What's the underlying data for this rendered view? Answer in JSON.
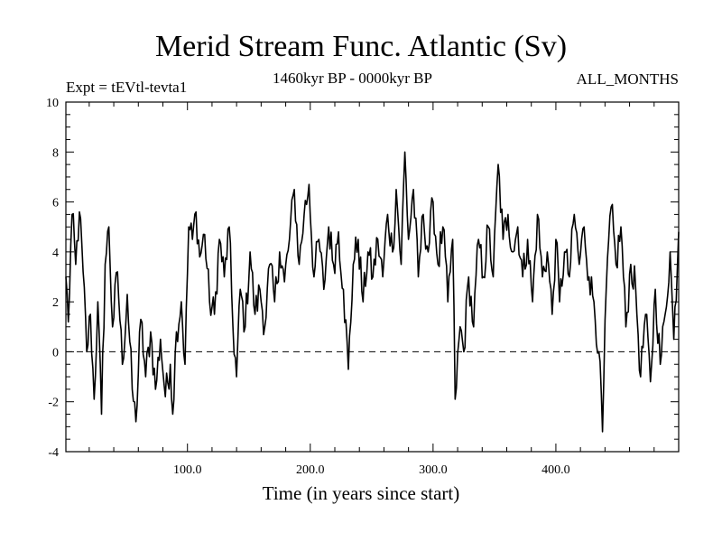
{
  "chart_data": {
    "type": "line",
    "title": "Merid Stream Func. Atlantic (Sv)",
    "subtitle_left": "Expt = tEVtl-tevta1",
    "subtitle_center": "1460kyr BP - 0000kyr BP",
    "subtitle_right": "ALL_MONTHS",
    "xlabel": "Time (in years since start)",
    "ylabel": "",
    "xlim": [
      1,
      500
    ],
    "ylim": [
      -4,
      10
    ],
    "xticks": [
      100,
      200,
      300,
      400
    ],
    "xtick_labels": [
      "100.0",
      "200.0",
      "300.0",
      "400.0"
    ],
    "yticks": [
      -4,
      -2,
      0,
      2,
      4,
      6,
      8,
      10
    ],
    "ytick_labels": [
      "-4",
      "-2",
      "0",
      "2",
      "4",
      "6",
      "8",
      "10"
    ],
    "reference_line": {
      "y": 0,
      "style": "dashed"
    },
    "series": [
      {
        "name": "Merid Stream Func. Atlantic",
        "color": "#000000",
        "keypoints": [
          [
            1,
            3.0
          ],
          [
            3,
            1.2
          ],
          [
            6,
            5.5
          ],
          [
            9,
            3.5
          ],
          [
            12,
            5.6
          ],
          [
            15,
            3.2
          ],
          [
            18,
            0.0
          ],
          [
            21,
            1.5
          ],
          [
            24,
            -1.9
          ],
          [
            27,
            2.0
          ],
          [
            30,
            -2.5
          ],
          [
            33,
            3.5
          ],
          [
            36,
            5.0
          ],
          [
            39,
            1.0
          ],
          [
            43,
            3.2
          ],
          [
            47,
            -0.5
          ],
          [
            51,
            2.3
          ],
          [
            55,
            -1.5
          ],
          [
            58,
            -2.8
          ],
          [
            62,
            1.3
          ],
          [
            66,
            -1.0
          ],
          [
            70,
            0.8
          ],
          [
            74,
            -1.5
          ],
          [
            78,
            0.5
          ],
          [
            82,
            -1.8
          ],
          [
            86,
            -0.5
          ],
          [
            88,
            -2.5
          ],
          [
            91,
            0.8
          ],
          [
            95,
            2.0
          ],
          [
            98,
            -0.5
          ],
          [
            101,
            5.0
          ],
          [
            104,
            4.5
          ],
          [
            107,
            5.6
          ],
          [
            110,
            3.8
          ],
          [
            114,
            4.7
          ],
          [
            118,
            2.0
          ],
          [
            122,
            1.5
          ],
          [
            126,
            4.5
          ],
          [
            130,
            3.0
          ],
          [
            134,
            5.0
          ],
          [
            137,
            1.0
          ],
          [
            140,
            -1.0
          ],
          [
            143,
            2.5
          ],
          [
            147,
            1.0
          ],
          [
            151,
            4.0
          ],
          [
            155,
            1.5
          ],
          [
            159,
            2.5
          ],
          [
            163,
            1.0
          ],
          [
            167,
            3.5
          ],
          [
            171,
            2.0
          ],
          [
            175,
            4.0
          ],
          [
            179,
            2.8
          ],
          [
            183,
            4.5
          ],
          [
            187,
            6.5
          ],
          [
            191,
            3.5
          ],
          [
            195,
            5.5
          ],
          [
            199,
            6.7
          ],
          [
            203,
            3.0
          ],
          [
            207,
            4.5
          ],
          [
            211,
            2.5
          ],
          [
            215,
            5.0
          ],
          [
            219,
            3.5
          ],
          [
            223,
            4.8
          ],
          [
            227,
            2.5
          ],
          [
            231,
            -0.7
          ],
          [
            235,
            3.5
          ],
          [
            239,
            4.5
          ],
          [
            243,
            2.0
          ],
          [
            247,
            4.0
          ],
          [
            251,
            3.0
          ],
          [
            255,
            4.5
          ],
          [
            259,
            3.0
          ],
          [
            263,
            5.5
          ],
          [
            267,
            4.0
          ],
          [
            270,
            6.5
          ],
          [
            274,
            3.5
          ],
          [
            277,
            8.0
          ],
          [
            280,
            4.5
          ],
          [
            284,
            6.5
          ],
          [
            288,
            3.0
          ],
          [
            292,
            5.5
          ],
          [
            296,
            4.0
          ],
          [
            300,
            6.0
          ],
          [
            304,
            3.5
          ],
          [
            308,
            5.0
          ],
          [
            312,
            2.0
          ],
          [
            316,
            4.5
          ],
          [
            318,
            -1.9
          ],
          [
            322,
            1.0
          ],
          [
            325,
            0.0
          ],
          [
            329,
            3.0
          ],
          [
            333,
            1.0
          ],
          [
            337,
            4.5
          ],
          [
            341,
            3.0
          ],
          [
            345,
            5.0
          ],
          [
            349,
            3.0
          ],
          [
            353,
            7.5
          ],
          [
            357,
            4.5
          ],
          [
            361,
            5.5
          ],
          [
            365,
            4.0
          ],
          [
            369,
            5.0
          ],
          [
            373,
            3.0
          ],
          [
            377,
            4.5
          ],
          [
            381,
            2.0
          ],
          [
            385,
            5.5
          ],
          [
            389,
            3.0
          ],
          [
            393,
            4.0
          ],
          [
            397,
            1.5
          ],
          [
            400,
            4.5
          ],
          [
            403,
            2.0
          ],
          [
            407,
            4.0
          ],
          [
            411,
            3.0
          ],
          [
            415,
            5.5
          ],
          [
            419,
            3.5
          ],
          [
            423,
            5.0
          ],
          [
            427,
            3.0
          ],
          [
            431,
            2.0
          ],
          [
            435,
            0.0
          ],
          [
            438,
            -3.2
          ],
          [
            441,
            2.5
          ],
          [
            445,
            5.8
          ],
          [
            449,
            3.5
          ],
          [
            453,
            5.0
          ],
          [
            457,
            1.0
          ],
          [
            461,
            3.5
          ],
          [
            465,
            2.5
          ],
          [
            469,
            -1.0
          ],
          [
            473,
            1.5
          ],
          [
            477,
            -1.2
          ],
          [
            481,
            2.5
          ],
          [
            485,
            -0.5
          ],
          [
            489,
            1.5
          ],
          [
            493,
            4.0
          ],
          [
            496,
            0.5
          ],
          [
            500,
            4.8
          ]
        ]
      }
    ]
  }
}
